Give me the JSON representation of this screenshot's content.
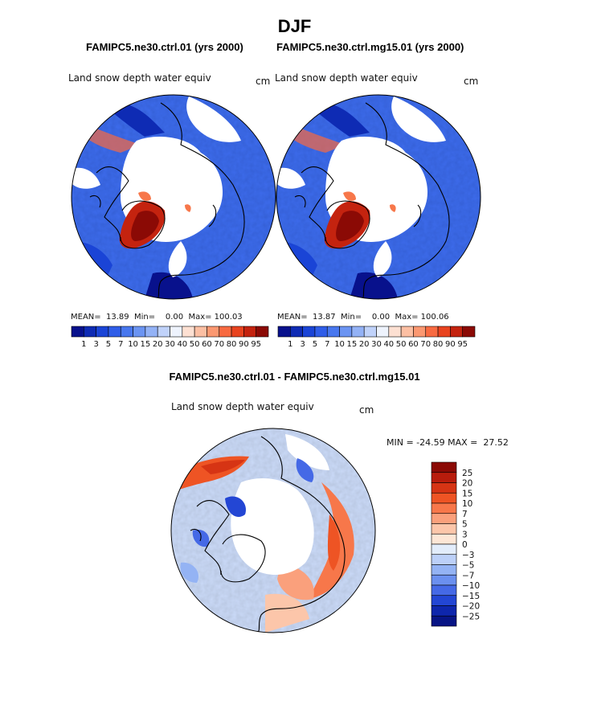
{
  "figure": {
    "season_title": "DJF",
    "diff_title": "FAMIPC5.ne30.ctrl.01 - FAMIPC5.ne30.ctrl.mg15.01"
  },
  "panels": {
    "left": {
      "case_title": "FAMIPC5.ne30.ctrl.01 (yrs 2000)",
      "variable_label": "Land snow depth water equiv",
      "units": "cm",
      "stats": "MEAN=  13.89  Min=    0.00  Max= 100.03"
    },
    "right": {
      "case_title": "FAMIPC5.ne30.ctrl.mg15.01 (yrs 2000)",
      "variable_label": "Land snow depth water equiv",
      "units": "cm",
      "stats": "MEAN=  13.87  Min=    0.00  Max= 100.06"
    },
    "diff": {
      "variable_label": "Land snow depth water equiv",
      "units": "cm",
      "stats": "MIN = -24.59 MAX =  27.52"
    }
  },
  "chart_data": [
    {
      "type": "heatmap",
      "projection": "north-polar-stereographic",
      "title": "FAMIPC5.ne30.ctrl.01 (yrs 2000)",
      "variable": "Land snow depth water equiv",
      "units": "cm",
      "mean": 13.89,
      "min": 0.0,
      "max": 100.03,
      "colorbar": {
        "orientation": "horizontal",
        "levels": [
          1,
          3,
          5,
          7,
          10,
          15,
          20,
          30,
          40,
          50,
          60,
          70,
          80,
          90,
          95
        ],
        "colors": [
          "#08118c",
          "#0e2bb4",
          "#1a44d6",
          "#2f5de8",
          "#4877ee",
          "#6b94f2",
          "#93b2f6",
          "#c0d2fa",
          "#eef3fd",
          "#fde0d2",
          "#fcbfa3",
          "#fb9871",
          "#f86a41",
          "#e8431f",
          "#c4230f",
          "#8b0a05"
        ]
      }
    },
    {
      "type": "heatmap",
      "projection": "north-polar-stereographic",
      "title": "FAMIPC5.ne30.ctrl.mg15.01 (yrs 2000)",
      "variable": "Land snow depth water equiv",
      "units": "cm",
      "mean": 13.87,
      "min": 0.0,
      "max": 100.06,
      "colorbar": {
        "orientation": "horizontal",
        "levels": [
          1,
          3,
          5,
          7,
          10,
          15,
          20,
          30,
          40,
          50,
          60,
          70,
          80,
          90,
          95
        ],
        "colors": [
          "#08118c",
          "#0e2bb4",
          "#1a44d6",
          "#2f5de8",
          "#4877ee",
          "#6b94f2",
          "#93b2f6",
          "#c0d2fa",
          "#eef3fd",
          "#fde0d2",
          "#fcbfa3",
          "#fb9871",
          "#f86a41",
          "#e8431f",
          "#c4230f",
          "#8b0a05"
        ]
      }
    },
    {
      "type": "heatmap",
      "projection": "north-polar-stereographic",
      "title": "FAMIPC5.ne30.ctrl.01 - FAMIPC5.ne30.ctrl.mg15.01",
      "variable": "Land snow depth water equiv",
      "units": "cm",
      "min": -24.59,
      "max": 27.52,
      "colorbar": {
        "orientation": "vertical",
        "levels": [
          25,
          20,
          15,
          10,
          7,
          5,
          3,
          0,
          -3,
          -5,
          -7,
          -10,
          -15,
          -20,
          -25
        ],
        "level_labels": [
          "25",
          "20",
          "15",
          "10",
          "7",
          "5",
          "3",
          "0",
          "−3",
          "−5",
          "−7",
          "−10",
          "−15",
          "−20",
          "−25"
        ],
        "colors": [
          "#8b0a05",
          "#b81c0c",
          "#d63414",
          "#ee5424",
          "#f7774a",
          "#faa07c",
          "#fcc6aa",
          "#fde6d6",
          "#e2ecfb",
          "#bcd0f8",
          "#94b3f4",
          "#6b90ef",
          "#4569e6",
          "#2346d4",
          "#0e26ac",
          "#071485"
        ]
      }
    }
  ]
}
